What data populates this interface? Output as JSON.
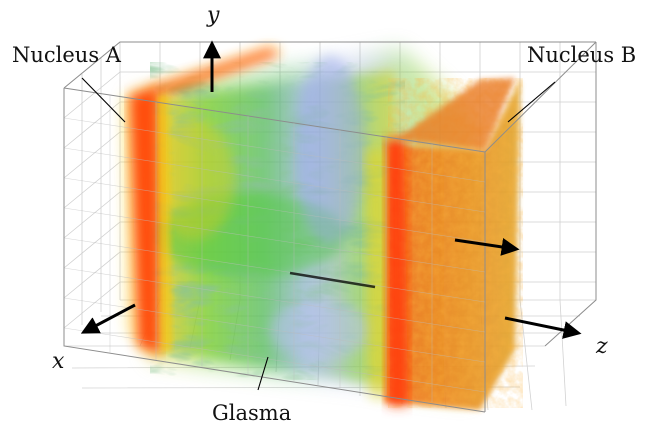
{
  "labels": {
    "nucleus_a": "Nucleus A",
    "nucleus_b": "Nucleus B",
    "glasma": "Glasma"
  },
  "axes": {
    "x": "x",
    "y": "y",
    "z": "z"
  },
  "colors": {
    "nucleus": "#ff5a14",
    "nucleus_core": "#e8a020",
    "glasma_green": "#5ccf3a",
    "glasma_blue": "#7f8fe6",
    "grid": "#c8c8c8",
    "box": "#9a9a9a",
    "arrow": "#000000"
  }
}
